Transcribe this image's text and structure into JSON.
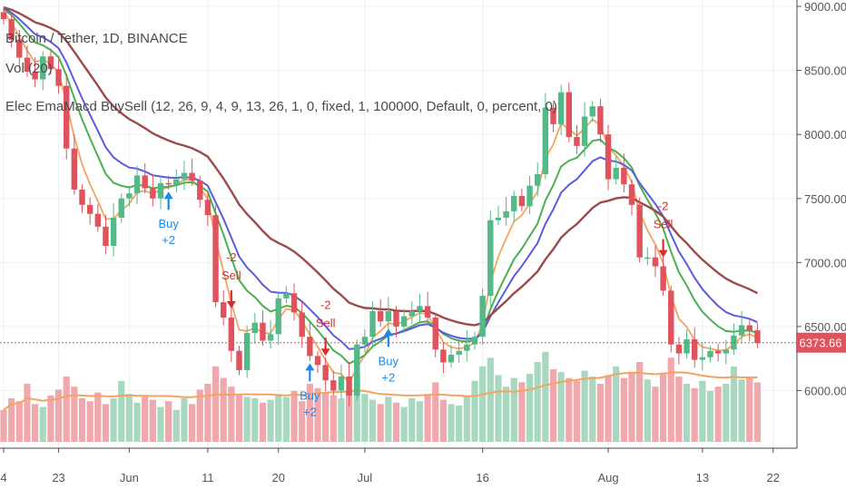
{
  "legend": {
    "symbol": "Bitcoin / Tether, 1D, BINANCE",
    "volume": "Vol (20)",
    "indicator": "Elec EmaMacd BuySell (12, 26, 9, 4, 9, 13, 26, 1, 0, fixed, 1, 100000, Default, 0, percent, 0)"
  },
  "price_label": "6373.66",
  "colors": {
    "up": "#53b987",
    "down": "#e0525c",
    "vol_up": "#a8d8bf",
    "vol_down": "#f1a8ad",
    "ema_fast": "#f4a460",
    "ema_mid": "#4caf50",
    "ema_slow": "#5b5be0",
    "ema_long": "#9c4a4a",
    "vol_ma": "#f4a460",
    "buy": "#1e88e5",
    "sell": "#d32f2f",
    "price_line": "#e0525c"
  },
  "chart_data": {
    "type": "candlestick",
    "title": "Bitcoin / Tether, 1D, BINANCE",
    "ylim": [
      5550,
      9050
    ],
    "y_ticks": [
      "9000.00",
      "8500.00",
      "8000.00",
      "7500.00",
      "7000.00",
      "6500.00",
      "6000.00"
    ],
    "x_ticks": [
      {
        "label": "4",
        "day": 0
      },
      {
        "label": "23",
        "day": 7
      },
      {
        "label": "Jun",
        "day": 16
      },
      {
        "label": "11",
        "day": 26
      },
      {
        "label": "20",
        "day": 35
      },
      {
        "label": "Jul",
        "day": 46
      },
      {
        "label": "16",
        "day": 61
      },
      {
        "label": "Aug",
        "day": 77
      },
      {
        "label": "13",
        "day": 89
      },
      {
        "label": "22",
        "day": 98
      }
    ],
    "last_price": 6373.66,
    "close": [
      8900,
      8740,
      8600,
      8490,
      8430,
      8610,
      8510,
      8380,
      7890,
      7570,
      7450,
      7380,
      7280,
      7130,
      7350,
      7500,
      7540,
      7680,
      7580,
      7500,
      7620,
      7610,
      7650,
      7700,
      7640,
      7490,
      7370,
      6690,
      6570,
      6310,
      6160,
      6450,
      6530,
      6390,
      6440,
      6720,
      6760,
      6610,
      6420,
      6270,
      6200,
      6080,
      6000,
      6110,
      5960,
      6360,
      6420,
      6620,
      6540,
      6620,
      6500,
      6580,
      6620,
      6660,
      6570,
      6320,
      6220,
      6280,
      6310,
      6360,
      6420,
      6740,
      7330,
      7350,
      7400,
      7520,
      7440,
      7600,
      7690,
      8210,
      8080,
      8330,
      7980,
      7910,
      8140,
      8220,
      8000,
      7650,
      7740,
      7610,
      7450,
      7040,
      7040,
      6970,
      6780,
      6360,
      6290,
      6400,
      6240,
      6260,
      6310,
      6290,
      6320,
      6430,
      6510,
      6470,
      6370
    ],
    "open": [
      8955,
      8900,
      8740,
      8600,
      8490,
      8430,
      8610,
      8510,
      8380,
      7890,
      7570,
      7450,
      7380,
      7280,
      7130,
      7350,
      7500,
      7540,
      7680,
      7580,
      7500,
      7620,
      7610,
      7650,
      7700,
      7640,
      7490,
      7370,
      6690,
      6570,
      6310,
      6160,
      6450,
      6530,
      6390,
      6440,
      6720,
      6760,
      6610,
      6420,
      6270,
      6200,
      6080,
      6000,
      6110,
      5960,
      6360,
      6420,
      6620,
      6540,
      6620,
      6500,
      6580,
      6620,
      6660,
      6570,
      6320,
      6220,
      6280,
      6310,
      6360,
      6420,
      6740,
      7330,
      7350,
      7400,
      7520,
      7440,
      7600,
      7690,
      8210,
      8080,
      8330,
      7980,
      7910,
      8140,
      8220,
      8000,
      7650,
      7740,
      7610,
      7450,
      7040,
      7040,
      6970,
      6780,
      6360,
      6290,
      6400,
      6240,
      6260,
      6310,
      6290,
      6320,
      6430,
      6510,
      6470
    ],
    "volume_fraction": [
      0.22,
      0.3,
      0.28,
      0.4,
      0.26,
      0.24,
      0.32,
      0.36,
      0.45,
      0.38,
      0.3,
      0.28,
      0.34,
      0.26,
      0.3,
      0.42,
      0.33,
      0.27,
      0.31,
      0.29,
      0.24,
      0.28,
      0.22,
      0.3,
      0.26,
      0.36,
      0.4,
      0.52,
      0.44,
      0.38,
      0.33,
      0.31,
      0.3,
      0.27,
      0.29,
      0.33,
      0.31,
      0.35,
      0.28,
      0.4,
      0.37,
      0.34,
      0.32,
      0.3,
      0.36,
      0.47,
      0.33,
      0.29,
      0.26,
      0.31,
      0.27,
      0.24,
      0.3,
      0.28,
      0.33,
      0.41,
      0.29,
      0.26,
      0.25,
      0.31,
      0.42,
      0.52,
      0.58,
      0.46,
      0.38,
      0.44,
      0.41,
      0.47,
      0.55,
      0.62,
      0.5,
      0.48,
      0.44,
      0.42,
      0.49,
      0.45,
      0.4,
      0.46,
      0.52,
      0.44,
      0.48,
      0.55,
      0.43,
      0.38,
      0.47,
      0.58,
      0.45,
      0.4,
      0.37,
      0.42,
      0.35,
      0.38,
      0.4,
      0.52,
      0.43,
      0.45,
      0.41
    ],
    "signals": [
      {
        "type": "buy",
        "day": 21,
        "value": "+2",
        "label": "Buy"
      },
      {
        "type": "sell",
        "day": 29,
        "value": "-2",
        "label": "Sell"
      },
      {
        "type": "buy",
        "day": 39,
        "value": "+2",
        "label": "Buy"
      },
      {
        "type": "sell",
        "day": 41,
        "value": "-2",
        "label": "Sell"
      },
      {
        "type": "buy",
        "day": 49,
        "value": "+2",
        "label": "Buy"
      },
      {
        "type": "sell",
        "day": 84,
        "value": "-2",
        "label": "Sell"
      }
    ],
    "grid": true
  }
}
